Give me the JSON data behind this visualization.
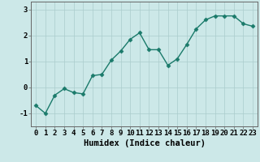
{
  "x": [
    0,
    1,
    2,
    3,
    4,
    5,
    6,
    7,
    8,
    9,
    10,
    11,
    12,
    13,
    14,
    15,
    16,
    17,
    18,
    19,
    20,
    21,
    22,
    23
  ],
  "y": [
    -0.7,
    -1.0,
    -0.3,
    -0.05,
    -0.2,
    -0.25,
    0.45,
    0.5,
    1.05,
    1.4,
    1.85,
    2.1,
    1.45,
    1.45,
    0.85,
    1.1,
    1.65,
    2.25,
    2.6,
    2.75,
    2.75,
    2.75,
    2.45,
    2.35
  ],
  "line_color": "#1a7a6a",
  "marker": "D",
  "marker_size": 2.5,
  "bg_color": "#cce8e8",
  "grid_color": "#aacccc",
  "xlabel": "Humidex (Indice chaleur)",
  "ylim": [
    -1.5,
    3.3
  ],
  "xlim": [
    -0.5,
    23.5
  ],
  "yticks": [
    -1,
    0,
    1,
    2,
    3
  ],
  "xlabel_fontsize": 7.5,
  "tick_fontsize": 6.5,
  "line_width": 1.0
}
